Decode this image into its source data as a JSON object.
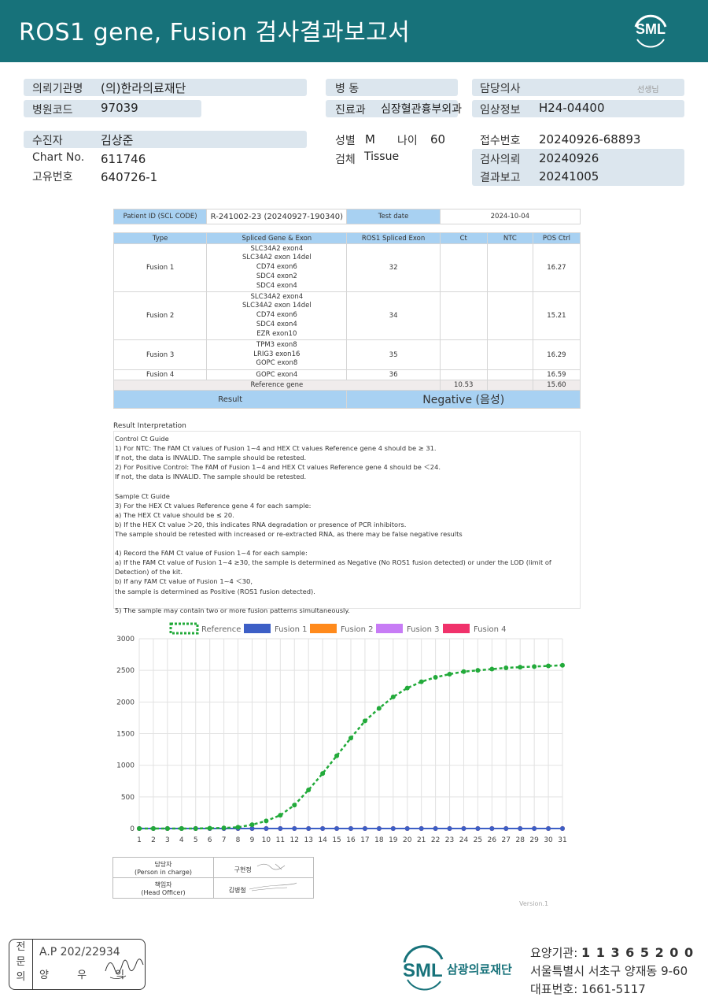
{
  "header": {
    "title": "ROS1  gene,  Fusion 검사결과보고서",
    "logo_text": "SML"
  },
  "info": {
    "institution_label": "의뢰기관명",
    "institution_value": "(의)한라의료재단",
    "hospital_code_label": "병원코드",
    "hospital_code_value": "97039",
    "ward_label": "병 동",
    "ward_value": "",
    "department_label": "진료과",
    "department_value": "심장혈관흉부외과",
    "doctor_label": "담당의사",
    "doctor_value": "선생님",
    "clinical_label": "임상정보",
    "clinical_value": "H24-04400",
    "patient_label": "수진자",
    "patient_value": "김상준",
    "chart_label": "Chart No.",
    "chart_value": "611746",
    "id_label": "고유번호",
    "id_value": "640726-1",
    "sex_label": "성별",
    "sex_value": "M",
    "age_label": "나이",
    "age_value": "60",
    "specimen_label": "검체",
    "specimen_value": "Tissue",
    "receipt_label": "접수번호",
    "receipt_value": "20240926-68893",
    "request_label": "검사의뢰",
    "request_value": "20240926",
    "report_label": "결과보고",
    "report_value": "20241005"
  },
  "patient_table": {
    "patient_id_label": "Patient ID (SCL CODE)",
    "patient_id_value": "R-241002-23 (20240927-190340)",
    "test_date_label": "Test date",
    "test_date_value": "2024-10-04"
  },
  "results_table": {
    "headers": [
      "Type",
      "Spliced Gene & Exon",
      "ROS1 Spliced Exon",
      "Ct",
      "NTC",
      "POS Ctrl"
    ],
    "rows": [
      {
        "type": "Fusion 1",
        "genes": [
          "SLC34A2 exon4",
          "SLC34A2 exon 14del",
          "CD74 exon6",
          "SDC4 exon2",
          "SDC4 exon4"
        ],
        "ros1": "32",
        "ct": "",
        "ntc": "",
        "pos": "16.27"
      },
      {
        "type": "Fusion 2",
        "genes": [
          "SLC34A2 exon4",
          "SLC34A2 exon 14del",
          "CD74 exon6",
          "SDC4 exon4",
          "EZR exon10"
        ],
        "ros1": "34",
        "ct": "",
        "ntc": "",
        "pos": "15.21"
      },
      {
        "type": "Fusion 3",
        "genes": [
          "TPM3 exon8",
          "LRIG3 exon16",
          "GOPC exon8"
        ],
        "ros1": "35",
        "ct": "",
        "ntc": "",
        "pos": "16.29"
      },
      {
        "type": "Fusion 4",
        "genes": [
          "GOPC exon4"
        ],
        "ros1": "36",
        "ct": "",
        "ntc": "",
        "pos": "16.59"
      }
    ],
    "reference_label": "Reference gene",
    "reference_ct": "10.53",
    "reference_pos": "15.60",
    "result_label": "Result",
    "result_value": "Negative (음성)"
  },
  "interpretation": {
    "title": "Result Interpretation",
    "lines": [
      "Control Ct Guide",
      "1) For NTC: The FAM Ct values of Fusion 1~4 and HEX Ct values Reference gene 4 should be ≥ 31.",
      "If not, the data is INVALID. The sample should be retested.",
      "2) For Positive Control: The FAM of Fusion 1~4 and HEX Ct values Reference gene 4 should be ＜24.",
      "If not, the data is INVALID. The sample should be retested.",
      "",
      "Sample Ct Guide",
      "3) For the HEX Ct values Reference gene 4 for each sample:",
      "  a) The HEX Ct value should be ≤ 20.",
      "  b) If the HEX Ct value ＞20, this indicates RNA degradation or presence of PCR inhibitors.",
      "The sample should be retested with increased or re-extracted RNA, as there may be false negative results",
      "",
      "4) Record the FAM Ct value of Fusion 1~4 for each sample:",
      "  a) If the FAM Ct value of Fusion 1~4 ≥30, the sample is determined as Negative (No ROS1 fusion detected) or under the LOD (limit of Detection) of the kit.",
      "  b) If any FAM Ct value of Fusion 1~4 ＜30,",
      "the sample is determined as Positive (ROS1 fusion detected).",
      "",
      "5) The sample may contain two or more fusion patterns simultaneously."
    ]
  },
  "chart_data": {
    "type": "line",
    "x": [
      1,
      2,
      3,
      4,
      5,
      6,
      7,
      8,
      9,
      10,
      11,
      12,
      13,
      14,
      15,
      16,
      17,
      18,
      19,
      20,
      21,
      22,
      23,
      24,
      25,
      26,
      27,
      28,
      29,
      30,
      31
    ],
    "series": [
      {
        "name": "Reference",
        "color": "#22aa3a",
        "values": [
          0,
          0,
          0,
          0,
          0,
          5,
          10,
          20,
          60,
          120,
          210,
          370,
          610,
          870,
          1150,
          1430,
          1700,
          1900,
          2080,
          2220,
          2320,
          2390,
          2440,
          2480,
          2500,
          2520,
          2540,
          2550,
          2560,
          2570,
          2580
        ]
      },
      {
        "name": "Fusion 1",
        "color": "#3d5fc6",
        "values": [
          0,
          0,
          0,
          0,
          0,
          0,
          0,
          0,
          0,
          0,
          0,
          0,
          0,
          0,
          0,
          0,
          0,
          0,
          0,
          0,
          0,
          0,
          0,
          0,
          0,
          0,
          0,
          0,
          0,
          0,
          0
        ]
      },
      {
        "name": "Fusion 2",
        "color": "#ff8a1c",
        "values": [
          0,
          0,
          0,
          0,
          0,
          0,
          0,
          0,
          0,
          0,
          0,
          0,
          0,
          0,
          0,
          0,
          0,
          0,
          0,
          0,
          0,
          0,
          0,
          0,
          0,
          0,
          0,
          0,
          0,
          0,
          0
        ]
      },
      {
        "name": "Fusion 3",
        "color": "#c77cf5",
        "values": [
          0,
          0,
          0,
          0,
          0,
          0,
          0,
          0,
          0,
          0,
          0,
          0,
          0,
          0,
          0,
          0,
          0,
          0,
          0,
          0,
          0,
          0,
          0,
          0,
          0,
          0,
          0,
          0,
          0,
          0,
          0
        ]
      },
      {
        "name": "Fusion 4",
        "color": "#f0326b",
        "values": [
          0,
          0,
          0,
          0,
          0,
          0,
          0,
          0,
          0,
          0,
          0,
          0,
          0,
          0,
          0,
          0,
          0,
          0,
          0,
          0,
          0,
          0,
          0,
          0,
          0,
          0,
          0,
          0,
          0,
          0,
          0
        ]
      }
    ],
    "yticks": [
      0,
      500,
      1000,
      1500,
      2000,
      2500,
      3000
    ],
    "ylim": [
      0,
      3000
    ],
    "grid": true,
    "legend": "top"
  },
  "signature": {
    "person_label": "담당자",
    "person_label_en": "(Person in charge)",
    "person_name": "구현정",
    "head_label": "책임자",
    "head_label_en": "(Head Officer)",
    "head_name": "김병철"
  },
  "version": "Version.1",
  "stamp": {
    "vertical": [
      "전",
      "문",
      "의"
    ],
    "ap": "A.P 202/22934",
    "name": "양 우 익"
  },
  "footer": {
    "org_name": "삼광의료재단",
    "code_label": "요양기관:",
    "code_value": "1 1 3 6 5 2 0 0",
    "address": "서울특별시 서초구 양재동 9-60",
    "phone_label": "대표번호:",
    "phone_value": "1661-5117"
  }
}
